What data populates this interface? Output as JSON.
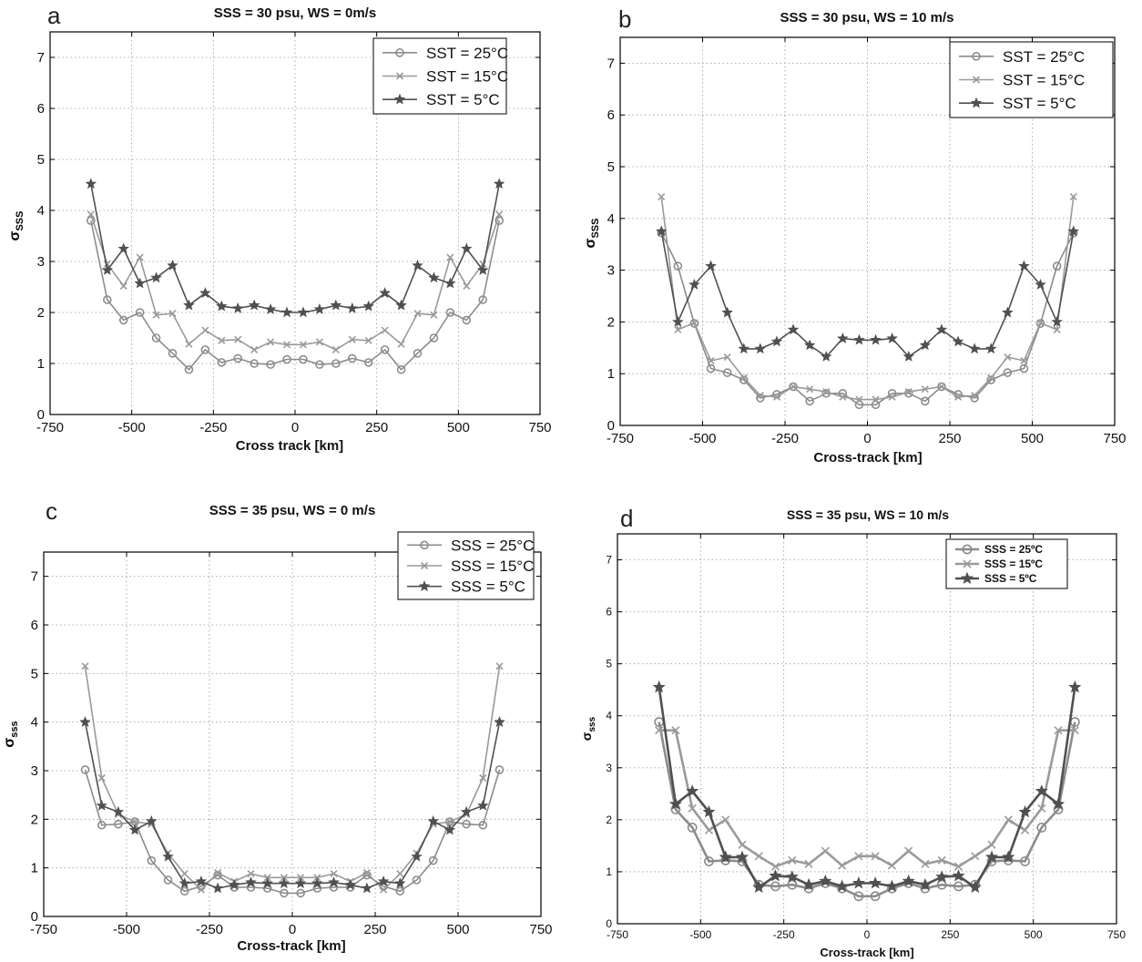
{
  "chart_data": [
    {
      "type": "line",
      "panel_label": "a",
      "title": "SSS = 30 psu, WS = 0m/s",
      "xlabel": "Cross track [km]",
      "ylabel_main": "σ",
      "ylabel_sub": "SSS",
      "xlim": [
        -750,
        750
      ],
      "ylim": [
        0,
        7.5
      ],
      "xticks": [
        -750,
        -500,
        -250,
        0,
        250,
        500,
        750
      ],
      "yticks": [
        0,
        1,
        2,
        3,
        4,
        5,
        6,
        7
      ],
      "grid": true,
      "legend_position": "top-right",
      "x": [
        -625,
        -575,
        -525,
        -475,
        -425,
        -375,
        -325,
        -275,
        -225,
        -175,
        -125,
        -75,
        -25,
        25,
        75,
        125,
        175,
        225,
        275,
        325,
        375,
        425,
        475,
        525,
        575,
        625
      ],
      "series": [
        {
          "name": "SST = 25°C",
          "marker": "circle",
          "color": "#8c8c8c",
          "values": [
            3.8,
            2.25,
            1.85,
            2.0,
            1.5,
            1.2,
            0.88,
            1.27,
            1.02,
            1.1,
            1.0,
            0.98,
            1.08,
            1.08,
            0.98,
            1.0,
            1.1,
            1.02,
            1.27,
            0.88,
            1.2,
            1.5,
            2.0,
            1.85,
            2.25,
            3.8
          ]
        },
        {
          "name": "SST = 15°C",
          "marker": "x",
          "color": "#9a9a9a",
          "values": [
            3.92,
            2.95,
            2.52,
            3.08,
            1.95,
            1.98,
            1.38,
            1.65,
            1.45,
            1.47,
            1.27,
            1.42,
            1.37,
            1.37,
            1.42,
            1.27,
            1.47,
            1.45,
            1.65,
            1.38,
            1.98,
            1.95,
            3.08,
            2.52,
            2.95,
            3.92
          ]
        },
        {
          "name": "SST = 5°C",
          "marker": "star",
          "color": "#505050",
          "values": [
            4.52,
            2.83,
            3.25,
            2.57,
            2.68,
            2.92,
            2.14,
            2.38,
            2.12,
            2.08,
            2.14,
            2.06,
            2.0,
            2.0,
            2.06,
            2.14,
            2.08,
            2.12,
            2.38,
            2.14,
            2.92,
            2.68,
            2.57,
            3.25,
            2.83,
            4.52
          ]
        }
      ]
    },
    {
      "type": "line",
      "panel_label": "b",
      "title": "SSS = 30 psu, WS = 10 m/s",
      "xlabel": "Cross-track [km]",
      "ylabel_main": "σ",
      "ylabel_sub": "SSS",
      "xlim": [
        -750,
        750
      ],
      "ylim": [
        0,
        7.5
      ],
      "xticks": [
        -750,
        -500,
        -250,
        0,
        250,
        500,
        750
      ],
      "yticks": [
        0,
        1,
        2,
        3,
        4,
        5,
        6,
        7
      ],
      "grid": true,
      "legend_position": "top-right",
      "x": [
        -625,
        -575,
        -525,
        -475,
        -425,
        -375,
        -325,
        -275,
        -225,
        -175,
        -125,
        -75,
        -25,
        25,
        75,
        125,
        175,
        225,
        275,
        325,
        375,
        425,
        475,
        525,
        575,
        625
      ],
      "series": [
        {
          "name": "SST = 25°C",
          "marker": "circle",
          "color": "#8c8c8c",
          "values": [
            3.72,
            3.08,
            1.97,
            1.1,
            1.02,
            0.88,
            0.53,
            0.6,
            0.75,
            0.47,
            0.62,
            0.62,
            0.4,
            0.4,
            0.62,
            0.62,
            0.47,
            0.75,
            0.6,
            0.53,
            0.88,
            1.02,
            1.1,
            1.97,
            3.08,
            3.72
          ]
        },
        {
          "name": "SST = 15°C",
          "marker": "x",
          "color": "#9a9a9a",
          "values": [
            4.42,
            1.85,
            1.98,
            1.25,
            1.32,
            0.92,
            0.58,
            0.55,
            0.75,
            0.7,
            0.65,
            0.55,
            0.5,
            0.5,
            0.55,
            0.65,
            0.7,
            0.75,
            0.55,
            0.58,
            0.92,
            1.32,
            1.25,
            1.98,
            1.85,
            4.42
          ]
        },
        {
          "name": "SST = 5°C",
          "marker": "star",
          "color": "#505050",
          "values": [
            3.75,
            2.0,
            2.72,
            3.08,
            2.18,
            1.48,
            1.48,
            1.62,
            1.85,
            1.55,
            1.33,
            1.68,
            1.65,
            1.65,
            1.68,
            1.33,
            1.55,
            1.85,
            1.62,
            1.48,
            1.48,
            2.18,
            3.08,
            2.72,
            2.0,
            3.75
          ]
        }
      ]
    },
    {
      "type": "line",
      "panel_label": "c",
      "title": "SSS = 35 psu, WS = 0 m/s",
      "xlabel": "Cross-track [km]",
      "ylabel_main": "σ",
      "ylabel_sub": "sss",
      "xlim": [
        -750,
        750
      ],
      "ylim": [
        0,
        7.5
      ],
      "xticks": [
        -750,
        -500,
        -250,
        0,
        250,
        500,
        750
      ],
      "yticks": [
        0,
        1,
        2,
        3,
        4,
        5,
        6,
        7
      ],
      "grid": true,
      "legend_position": "top-right",
      "x": [
        -625,
        -575,
        -525,
        -475,
        -425,
        -375,
        -325,
        -275,
        -225,
        -175,
        -125,
        -75,
        -25,
        25,
        75,
        125,
        175,
        225,
        275,
        325,
        375,
        425,
        475,
        525,
        575,
        625
      ],
      "series": [
        {
          "name": "SSS = 25°C",
          "marker": "circle",
          "color": "#8c8c8c",
          "values": [
            3.02,
            1.88,
            1.9,
            1.95,
            1.15,
            0.75,
            0.52,
            0.62,
            0.85,
            0.6,
            0.6,
            0.58,
            0.48,
            0.48,
            0.58,
            0.6,
            0.6,
            0.85,
            0.62,
            0.52,
            0.75,
            1.15,
            1.95,
            1.9,
            1.88,
            3.02
          ]
        },
        {
          "name": "SSS = 15°C",
          "marker": "x",
          "color": "#9a9a9a",
          "values": [
            5.15,
            2.85,
            2.1,
            1.95,
            1.9,
            1.3,
            0.88,
            0.55,
            0.9,
            0.72,
            0.88,
            0.8,
            0.8,
            0.8,
            0.8,
            0.88,
            0.72,
            0.9,
            0.55,
            0.88,
            1.3,
            1.9,
            1.95,
            2.1,
            2.85,
            5.15
          ]
        },
        {
          "name": "SSS = 5°C",
          "marker": "star",
          "color": "#505050",
          "values": [
            4.0,
            2.28,
            2.15,
            1.78,
            1.96,
            1.23,
            0.68,
            0.72,
            0.58,
            0.65,
            0.7,
            0.68,
            0.68,
            0.68,
            0.68,
            0.7,
            0.65,
            0.58,
            0.72,
            0.68,
            1.23,
            1.96,
            1.78,
            2.15,
            2.28,
            4.0
          ]
        }
      ]
    },
    {
      "type": "line",
      "panel_label": "d",
      "title": "SSS = 35 psu,  WS = 10 m/s",
      "xlabel": "Cross-track [km]",
      "ylabel_main": "σ",
      "ylabel_sub": "sss",
      "xlim": [
        -750,
        750
      ],
      "ylim": [
        0,
        7.5
      ],
      "xticks": [
        -750,
        -500,
        -250,
        0,
        250,
        500,
        750
      ],
      "yticks": [
        0,
        1,
        2,
        3,
        4,
        5,
        6,
        7
      ],
      "grid": true,
      "legend_position": "top-right",
      "x": [
        -625,
        -575,
        -525,
        -475,
        -425,
        -375,
        -325,
        -275,
        -225,
        -175,
        -125,
        -75,
        -25,
        25,
        75,
        125,
        175,
        225,
        275,
        325,
        375,
        425,
        475,
        525,
        575,
        625
      ],
      "series": [
        {
          "name": "SSS = 25ºC",
          "marker": "circle",
          "color": "#8c8c8c",
          "values": [
            3.88,
            2.2,
            1.85,
            1.2,
            1.22,
            1.2,
            0.75,
            0.72,
            0.75,
            0.68,
            0.78,
            0.68,
            0.53,
            0.53,
            0.68,
            0.78,
            0.68,
            0.75,
            0.72,
            0.75,
            1.2,
            1.22,
            1.2,
            1.85,
            2.2,
            3.88
          ]
        },
        {
          "name": "SSS = 15ºC",
          "marker": "x",
          "color": "#9a9a9a",
          "values": [
            3.72,
            3.72,
            2.22,
            1.8,
            2.0,
            1.52,
            1.3,
            1.1,
            1.22,
            1.15,
            1.4,
            1.12,
            1.3,
            1.3,
            1.12,
            1.4,
            1.15,
            1.22,
            1.1,
            1.3,
            1.52,
            2.0,
            1.8,
            2.22,
            3.72,
            3.72
          ]
        },
        {
          "name": "SSS = 5ºC",
          "marker": "star",
          "color": "#505050",
          "values": [
            4.55,
            2.3,
            2.55,
            2.15,
            1.28,
            1.28,
            0.7,
            0.92,
            0.9,
            0.75,
            0.82,
            0.72,
            0.78,
            0.78,
            0.72,
            0.82,
            0.75,
            0.9,
            0.92,
            0.7,
            1.28,
            1.28,
            2.15,
            2.55,
            2.3,
            4.55
          ]
        }
      ]
    }
  ]
}
